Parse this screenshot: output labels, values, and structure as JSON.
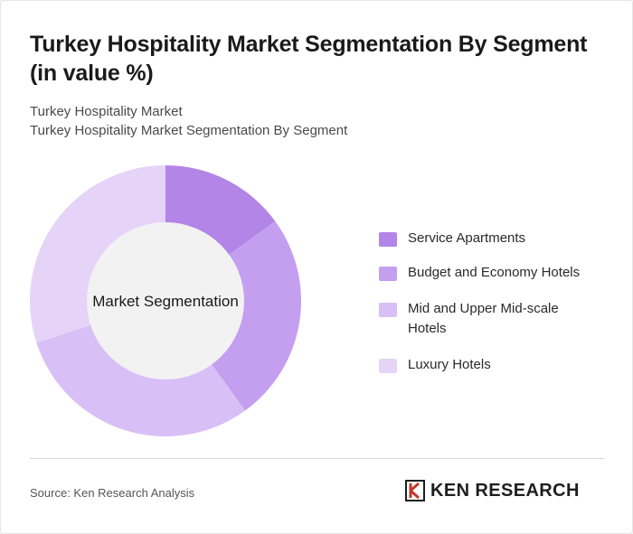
{
  "header": {
    "title": "Turkey Hospitality Market Segmentation By Segment (in value %)",
    "subtitle_line1": "Turkey Hospitality Market",
    "subtitle_line2": "Turkey Hospitality Market Segmentation By Segment"
  },
  "chart_data": {
    "type": "pie",
    "variant": "donut",
    "center_label": "Market Segmentation",
    "categories": [
      "Service Apartments",
      "Budget and Economy Hotels",
      "Mid and Upper Mid-scale Hotels",
      "Luxury Hotels"
    ],
    "values": [
      15,
      25,
      30,
      30
    ],
    "colors": [
      "#b285e6",
      "#c49ff0",
      "#d8bff5",
      "#e6d4f8"
    ],
    "legend_position": "right"
  },
  "footer": {
    "source": "Source: Ken Research Analysis",
    "logo_text": "KEN RESEARCH"
  }
}
